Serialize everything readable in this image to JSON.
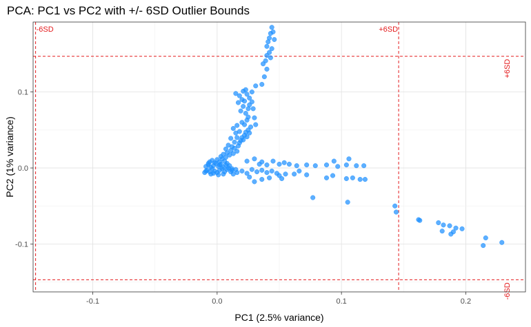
{
  "chart_data": {
    "type": "scatter",
    "title": "PCA: PC1 vs PC2 with +/- 6SD Outlier Bounds",
    "xlabel": "PC1 (2.5% variance)",
    "ylabel": "PC2 (1% variance)",
    "xlim": [
      -0.148,
      0.248
    ],
    "ylim": [
      -0.163,
      0.192
    ],
    "x_ticks": [
      -0.1,
      0.0,
      0.1,
      0.2
    ],
    "x_tick_labels": [
      "-0.1",
      "0.0",
      "0.1",
      "0.2"
    ],
    "y_ticks": [
      -0.1,
      0.0,
      0.1
    ],
    "y_tick_labels": [
      "-0.1",
      "0.0",
      "0.1"
    ],
    "grid": true,
    "point_color": "#1E90FF",
    "bound_color": "#E41A1C",
    "bounds": {
      "pc1": {
        "lower": -0.146,
        "upper": 0.146,
        "lower_label": "-6SD",
        "upper_label": "+6SD"
      },
      "pc2": {
        "lower": -0.147,
        "upper": 0.147,
        "lower_label": "-6SD",
        "upper_label": "+6SD"
      }
    },
    "series": [
      {
        "points": [
          [
            -0.01,
            -0.006
          ],
          [
            -0.008,
            -0.003
          ],
          [
            -0.006,
            -0.005
          ],
          [
            -0.004,
            -0.001
          ],
          [
            -0.002,
            -0.004
          ],
          [
            0.0,
            -0.006
          ],
          [
            0.002,
            -0.003
          ],
          [
            0.004,
            -0.001
          ],
          [
            0.006,
            -0.005
          ],
          [
            0.008,
            -0.002
          ],
          [
            -0.009,
            0.002
          ],
          [
            -0.007,
            0.004
          ],
          [
            -0.005,
            0.001
          ],
          [
            -0.003,
            0.003
          ],
          [
            -0.001,
            0.006
          ],
          [
            0.001,
            0.002
          ],
          [
            0.003,
            0.005
          ],
          [
            0.005,
            0.001
          ],
          [
            0.007,
            0.004
          ],
          [
            0.009,
            0.0
          ],
          [
            -0.006,
            0.008
          ],
          [
            -0.004,
            0.01
          ],
          [
            -0.002,
            0.007
          ],
          [
            0.0,
            0.011
          ],
          [
            0.002,
            0.008
          ],
          [
            0.004,
            0.012
          ],
          [
            0.006,
            0.009
          ],
          [
            0.008,
            0.006
          ],
          [
            0.01,
            0.003
          ],
          [
            0.012,
            -0.001
          ],
          [
            0.003,
            0.015
          ],
          [
            0.005,
            0.018
          ],
          [
            0.007,
            0.014
          ],
          [
            0.008,
            0.02
          ],
          [
            0.01,
            0.017
          ],
          [
            0.011,
            0.023
          ],
          [
            0.013,
            0.019
          ],
          [
            0.014,
            0.026
          ],
          [
            0.016,
            0.022
          ],
          [
            0.017,
            0.029
          ],
          [
            0.018,
            0.033
          ],
          [
            0.019,
            0.036
          ],
          [
            0.02,
            0.04
          ],
          [
            0.021,
            0.037
          ],
          [
            0.022,
            0.043
          ],
          [
            0.023,
            0.047
          ],
          [
            0.024,
            0.041
          ],
          [
            0.025,
            0.05
          ],
          [
            0.026,
            0.046
          ],
          [
            0.027,
            0.054
          ],
          [
            0.02,
            0.06
          ],
          [
            0.022,
            0.057
          ],
          [
            0.024,
            0.063
          ],
          [
            0.025,
            0.067
          ],
          [
            0.023,
            0.072
          ],
          [
            0.025,
            0.078
          ],
          [
            0.026,
            0.083
          ],
          [
            0.021,
            0.081
          ],
          [
            0.019,
            0.075
          ],
          [
            0.028,
            0.087
          ],
          [
            0.026,
            0.092
          ],
          [
            0.022,
            0.088
          ],
          [
            0.024,
            0.097
          ],
          [
            0.031,
            0.057
          ],
          [
            0.03,
            0.066
          ],
          [
            0.029,
            0.078
          ],
          [
            0.02,
            0.09
          ],
          [
            0.017,
            0.086
          ],
          [
            0.018,
            0.095
          ],
          [
            0.015,
            0.098
          ],
          [
            0.021,
            0.101
          ],
          [
            0.023,
            0.103
          ],
          [
            0.028,
            0.1
          ],
          [
            0.031,
            0.108
          ],
          [
            0.036,
            0.11
          ],
          [
            0.038,
            0.12
          ],
          [
            0.04,
            0.13
          ],
          [
            0.039,
            0.141
          ],
          [
            0.04,
            0.148
          ],
          [
            0.042,
            0.152
          ],
          [
            0.044,
            0.157
          ],
          [
            0.041,
            0.166
          ],
          [
            0.042,
            0.171
          ],
          [
            0.043,
            0.177
          ],
          [
            0.045,
            0.179
          ],
          [
            0.044,
            0.185
          ],
          [
            0.04,
            0.16
          ],
          [
            0.046,
            0.169
          ],
          [
            0.043,
            0.145
          ],
          [
            0.037,
            0.137
          ],
          [
            0.012,
            0.028
          ],
          [
            0.014,
            0.034
          ],
          [
            0.016,
            0.04
          ],
          [
            0.015,
            0.046
          ],
          [
            0.013,
            0.052
          ],
          [
            0.011,
            0.039
          ],
          [
            0.009,
            0.03
          ],
          [
            0.007,
            0.025
          ],
          [
            0.018,
            0.048
          ],
          [
            0.016,
            0.056
          ],
          [
            0.012,
            -0.003
          ],
          [
            0.016,
            -0.006
          ],
          [
            0.02,
            -0.004
          ],
          [
            0.024,
            -0.007
          ],
          [
            0.028,
            -0.002
          ],
          [
            0.032,
            -0.005
          ],
          [
            0.036,
            -0.003
          ],
          [
            0.04,
            -0.006
          ],
          [
            0.044,
            -0.004
          ],
          [
            0.048,
            -0.007
          ],
          [
            0.024,
            0.009
          ],
          [
            0.03,
            0.012
          ],
          [
            0.036,
            0.008
          ],
          [
            0.04,
            0.004
          ],
          [
            0.034,
            0.005
          ],
          [
            0.045,
            0.009
          ],
          [
            0.05,
            0.005
          ],
          [
            0.054,
            0.007
          ],
          [
            0.058,
            0.005
          ],
          [
            0.064,
            0.003
          ],
          [
            0.072,
            0.004
          ],
          [
            0.079,
            0.003
          ],
          [
            0.088,
            0.004
          ],
          [
            0.097,
            0.002
          ],
          [
            0.104,
            0.004
          ],
          [
            0.112,
            0.003
          ],
          [
            0.118,
            0.003
          ],
          [
            0.094,
            0.009
          ],
          [
            0.106,
            0.012
          ],
          [
            0.026,
            -0.012
          ],
          [
            0.03,
            -0.018
          ],
          [
            0.036,
            -0.015
          ],
          [
            0.042,
            -0.013
          ],
          [
            0.05,
            -0.01
          ],
          [
            0.055,
            -0.008
          ],
          [
            0.052,
            -0.014
          ],
          [
            0.062,
            -0.008
          ],
          [
            0.066,
            -0.004
          ],
          [
            0.072,
            -0.009
          ],
          [
            0.088,
            -0.013
          ],
          [
            0.093,
            -0.01
          ],
          [
            0.104,
            -0.014
          ],
          [
            0.109,
            -0.013
          ],
          [
            0.115,
            -0.015
          ],
          [
            0.119,
            -0.015
          ],
          [
            0.077,
            -0.039
          ],
          [
            0.105,
            -0.045
          ],
          [
            0.143,
            -0.05
          ],
          [
            0.144,
            -0.058
          ],
          [
            0.162,
            -0.068
          ],
          [
            0.163,
            -0.069
          ],
          [
            0.178,
            -0.072
          ],
          [
            0.182,
            -0.075
          ],
          [
            0.181,
            -0.083
          ],
          [
            0.187,
            -0.076
          ],
          [
            0.192,
            -0.079
          ],
          [
            0.19,
            -0.084
          ],
          [
            0.197,
            -0.08
          ],
          [
            0.216,
            -0.092
          ],
          [
            0.214,
            -0.102
          ],
          [
            0.229,
            -0.098
          ],
          [
            0.188,
            -0.087
          ],
          [
            -0.005,
            -0.008
          ],
          [
            -0.009,
            -0.004
          ],
          [
            -0.003,
            -0.007
          ],
          [
            0.001,
            -0.009
          ],
          [
            0.005,
            -0.008
          ],
          [
            0.011,
            -0.005
          ],
          [
            0.013,
            -0.008
          ],
          [
            0.015,
            -0.002
          ],
          [
            -0.007,
            0.006
          ],
          [
            0.002,
            0.004
          ]
        ]
      }
    ]
  }
}
